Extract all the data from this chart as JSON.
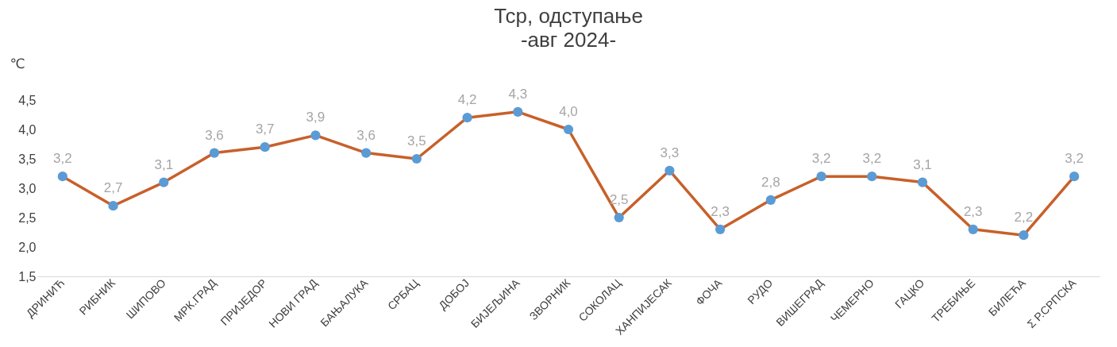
{
  "chart_data": {
    "type": "line",
    "title": "Тср, одступање",
    "subtitle": "-авг 2024-",
    "ylabel": "℃",
    "categories": [
      "ДРИНИЋ",
      "РИБНИК",
      "ШИПОВО",
      "МРК.ГРАД",
      "ПРИЈЕДОР",
      "НОВИ ГРАД",
      "БАЊАЛУКА",
      "СРБАЦ",
      "ДОБОЈ",
      "БИЈЕЉИНА",
      "ЗВОРНИК",
      "СОКОЛАЦ",
      "ХАНПИЈЕСАК",
      "ФОЧА",
      "РУДО",
      "ВИШЕГРАД",
      "ЧЕМЕРНО",
      "ГАЦКО",
      "ТРЕБИЊЕ",
      "БИЛЕЋА",
      "Σ Р.СРПСКА"
    ],
    "series": [
      {
        "color": "#c8602a",
        "colors": [
          "#5b9bd5",
          "#5b9bd5",
          "#5b9bd5",
          "#5b9bd5",
          "#5b9bd5",
          "#5b9bd5",
          "#5b9bd5",
          "#5b9bd5",
          "#5b9bd5",
          "#5b9bd5",
          "#5b9bd5",
          "#5b9bd5",
          "#5b9bd5",
          "#5b9bd5",
          "#5b9bd5",
          "#5b9bd5",
          "#5b9bd5",
          "#5b9bd5",
          "#5b9bd5",
          "#5b9bd5",
          "#5b9bd5"
        ],
        "values": [
          3.2,
          2.7,
          3.1,
          3.6,
          3.7,
          3.9,
          3.6,
          3.5,
          4.2,
          4.3,
          4.0,
          2.5,
          3.3,
          2.3,
          2.8,
          3.2,
          3.2,
          3.1,
          2.3,
          2.2,
          3.2
        ],
        "value_labels": [
          "3,2",
          "2,7",
          "3,1",
          "3,6",
          "3,7",
          "3,9",
          "3,6",
          "3,5",
          "4,2",
          "4,3",
          "4,0",
          "2,5",
          "3,3",
          "2,3",
          "2,8",
          "3,2",
          "3,2",
          "3,1",
          "2,3",
          "2,2",
          "3,2"
        ]
      }
    ],
    "ylim": [
      1.5,
      4.5
    ],
    "yticks": [
      {
        "value": 1.5,
        "label": "1,5"
      },
      {
        "value": 2.0,
        "label": "2,0"
      },
      {
        "value": 2.5,
        "label": "2,5"
      },
      {
        "value": 3.0,
        "label": "3,0"
      },
      {
        "value": 3.5,
        "label": "3,5"
      },
      {
        "value": 4.0,
        "label": "4,0"
      },
      {
        "value": 4.5,
        "label": "4,5"
      }
    ],
    "marker": "circle",
    "line_style": "solid"
  }
}
